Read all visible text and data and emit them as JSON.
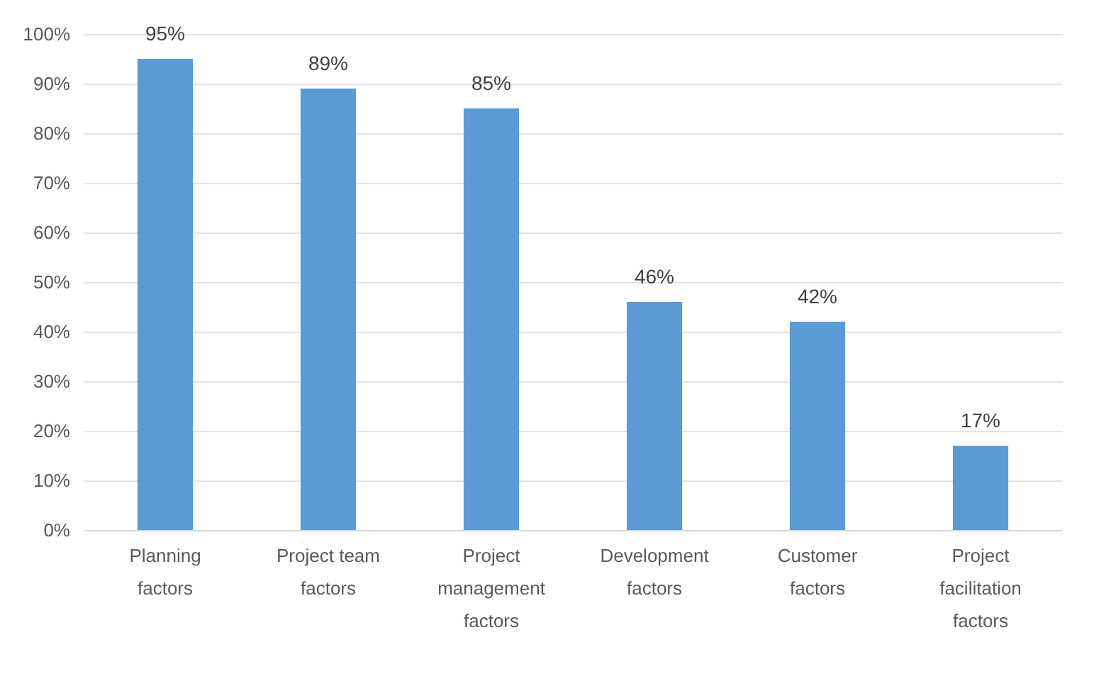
{
  "chart_data": {
    "type": "bar",
    "categories": [
      "Planning factors",
      "Project team factors",
      "Project management factors",
      "Development factors",
      "Customer factors",
      "Project facilitation factors"
    ],
    "values": [
      95,
      89,
      85,
      46,
      42,
      17
    ],
    "value_labels": [
      "95%",
      "89%",
      "85%",
      "46%",
      "42%",
      "17%"
    ],
    "color": "#5b9bd5",
    "ylim": [
      0,
      100
    ],
    "yticks": [
      {
        "value": 0,
        "label": "0%"
      },
      {
        "value": 10,
        "label": "10%"
      },
      {
        "value": 20,
        "label": "20%"
      },
      {
        "value": 30,
        "label": "30%"
      },
      {
        "value": 40,
        "label": "40%"
      },
      {
        "value": 50,
        "label": "50%"
      },
      {
        "value": 60,
        "label": "60%"
      },
      {
        "value": 70,
        "label": "70%"
      },
      {
        "value": 80,
        "label": "80%"
      },
      {
        "value": 90,
        "label": "90%"
      },
      {
        "value": 100,
        "label": "100%"
      }
    ],
    "grid": "y"
  }
}
